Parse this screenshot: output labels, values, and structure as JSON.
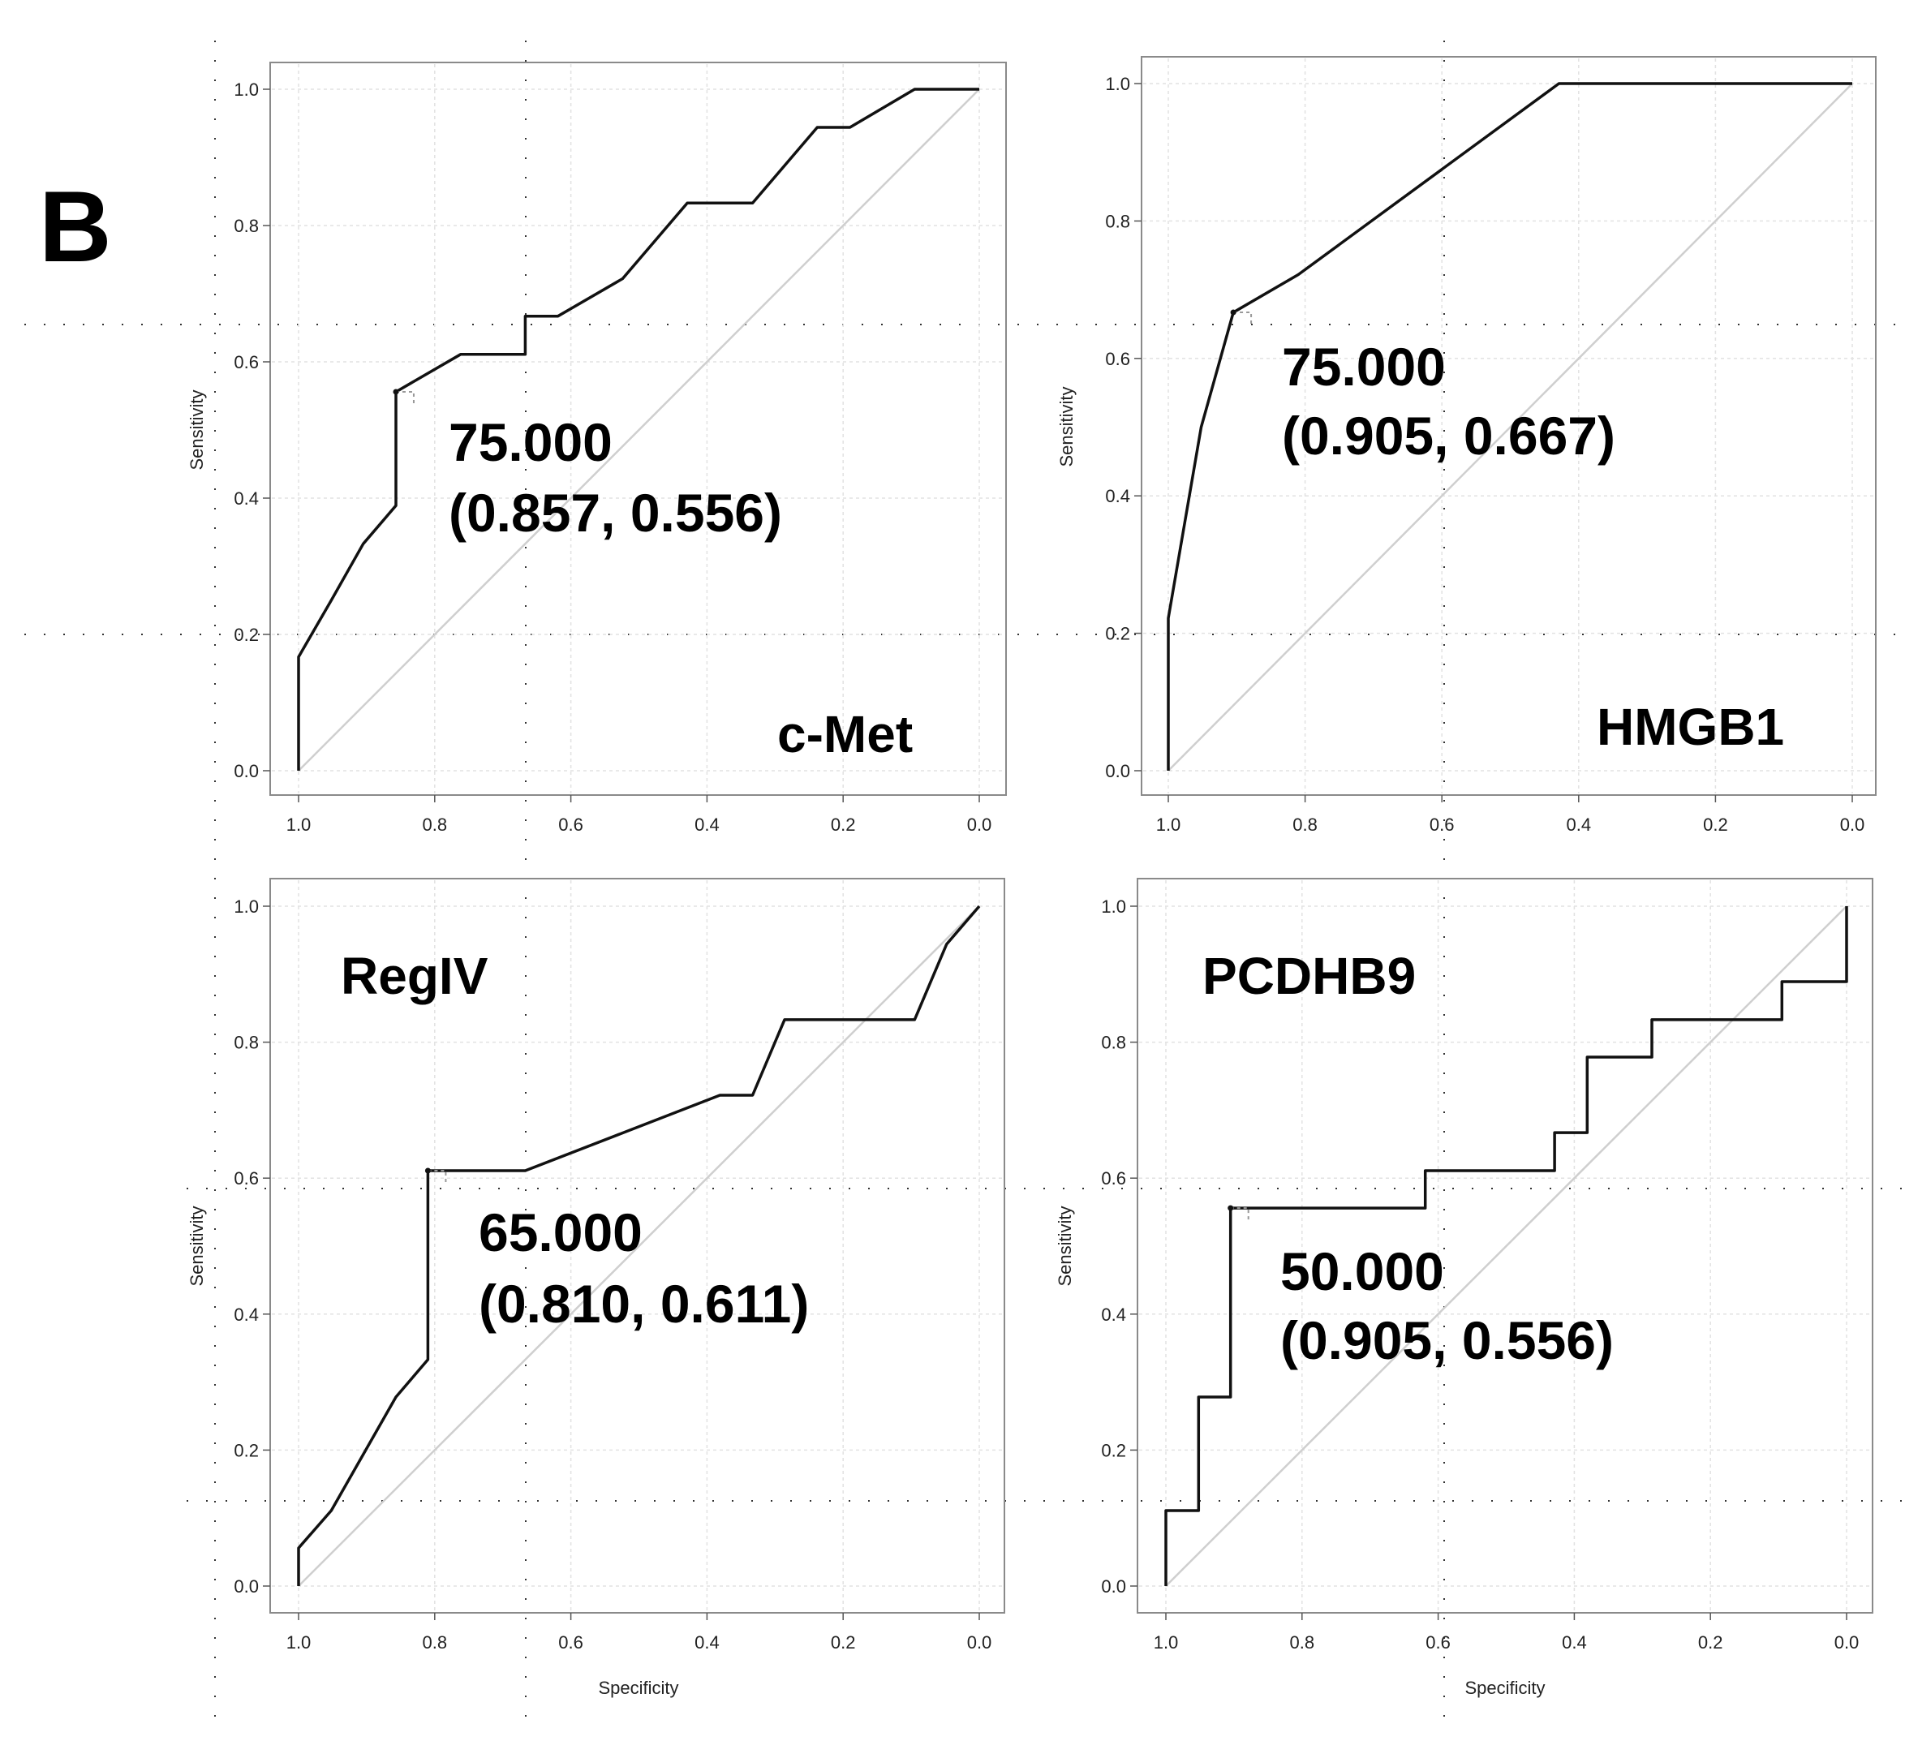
{
  "figure": {
    "panel_label": "B"
  },
  "chart_data": [
    {
      "type": "line",
      "marker": "c-Met",
      "xlabel": "",
      "ylabel": "Sensitivity",
      "xlim": [
        1.0,
        0.0
      ],
      "ylim": [
        0.0,
        1.0
      ],
      "xticks": [
        "1.0",
        "0.8",
        "0.6",
        "0.4",
        "0.2",
        "0.0"
      ],
      "yticks": [
        "0.0",
        "0.2",
        "0.4",
        "0.6",
        "0.8",
        "1.0"
      ],
      "grid": true,
      "reference_diagonal": true,
      "series": [
        {
          "name": "c-Met ROC",
          "points": [
            [
              1.0,
              0.0
            ],
            [
              1.0,
              0.167
            ],
            [
              0.952,
              0.25
            ],
            [
              0.905,
              0.333
            ],
            [
              0.857,
              0.389
            ],
            [
              0.857,
              0.556
            ],
            [
              0.762,
              0.611
            ],
            [
              0.667,
              0.611
            ],
            [
              0.667,
              0.667
            ],
            [
              0.619,
              0.667
            ],
            [
              0.524,
              0.722
            ],
            [
              0.429,
              0.833
            ],
            [
              0.333,
              0.833
            ],
            [
              0.238,
              0.944
            ],
            [
              0.19,
              0.944
            ],
            [
              0.095,
              1.0
            ],
            [
              0.0,
              1.0
            ]
          ]
        }
      ],
      "cutoff": {
        "specificity": 0.857,
        "sensitivity": 0.556
      },
      "annotation": {
        "threshold": "75.000",
        "coords": "(0.857, 0.556)"
      }
    },
    {
      "type": "line",
      "marker": "HMGB1",
      "xlabel": "",
      "ylabel": "Sensitivity",
      "xlim": [
        1.0,
        0.0
      ],
      "ylim": [
        0.0,
        1.0
      ],
      "xticks": [
        "1.0",
        "0.8",
        "0.6",
        "0.4",
        "0.2",
        "0.0"
      ],
      "yticks": [
        "0.0",
        "0.2",
        "0.4",
        "0.6",
        "0.8",
        "1.0"
      ],
      "grid": true,
      "reference_diagonal": true,
      "series": [
        {
          "name": "HMGB1 ROC",
          "points": [
            [
              1.0,
              0.0
            ],
            [
              1.0,
              0.222
            ],
            [
              0.952,
              0.5
            ],
            [
              0.905,
              0.667
            ],
            [
              0.81,
              0.722
            ],
            [
              0.429,
              1.0
            ],
            [
              0.0,
              1.0
            ]
          ]
        }
      ],
      "cutoff": {
        "specificity": 0.905,
        "sensitivity": 0.667
      },
      "annotation": {
        "threshold": "75.000",
        "coords": "(0.905, 0.667)"
      }
    },
    {
      "type": "line",
      "marker": "RegIV",
      "xlabel": "Specificity",
      "ylabel": "Sensitivity",
      "xlim": [
        1.0,
        0.0
      ],
      "ylim": [
        0.0,
        1.0
      ],
      "xticks": [
        "1.0",
        "0.8",
        "0.6",
        "0.4",
        "0.2",
        "0.0"
      ],
      "yticks": [
        "0.0",
        "0.2",
        "0.4",
        "0.6",
        "0.8",
        "1.0"
      ],
      "grid": true,
      "reference_diagonal": true,
      "series": [
        {
          "name": "RegIV ROC",
          "points": [
            [
              1.0,
              0.0
            ],
            [
              1.0,
              0.056
            ],
            [
              0.952,
              0.111
            ],
            [
              0.857,
              0.278
            ],
            [
              0.81,
              0.333
            ],
            [
              0.81,
              0.611
            ],
            [
              0.667,
              0.611
            ],
            [
              0.381,
              0.722
            ],
            [
              0.333,
              0.722
            ],
            [
              0.286,
              0.833
            ],
            [
              0.095,
              0.833
            ],
            [
              0.048,
              0.944
            ],
            [
              0.0,
              1.0
            ]
          ]
        }
      ],
      "cutoff": {
        "specificity": 0.81,
        "sensitivity": 0.611
      },
      "annotation": {
        "threshold": "65.000",
        "coords": "(0.810, 0.611)"
      }
    },
    {
      "type": "line",
      "marker": "PCDHB9",
      "xlabel": "Specificity",
      "ylabel": "Sensitivity",
      "xlim": [
        1.0,
        0.0
      ],
      "ylim": [
        0.0,
        1.0
      ],
      "xticks": [
        "1.0",
        "0.8",
        "0.6",
        "0.4",
        "0.2",
        "0.0"
      ],
      "yticks": [
        "0.0",
        "0.2",
        "0.4",
        "0.6",
        "0.8",
        "1.0"
      ],
      "grid": true,
      "reference_diagonal": true,
      "series": [
        {
          "name": "PCDHB9 ROC",
          "points": [
            [
              1.0,
              0.0
            ],
            [
              1.0,
              0.111
            ],
            [
              0.952,
              0.111
            ],
            [
              0.952,
              0.278
            ],
            [
              0.905,
              0.278
            ],
            [
              0.905,
              0.556
            ],
            [
              0.619,
              0.556
            ],
            [
              0.619,
              0.611
            ],
            [
              0.429,
              0.611
            ],
            [
              0.429,
              0.667
            ],
            [
              0.381,
              0.667
            ],
            [
              0.381,
              0.778
            ],
            [
              0.286,
              0.778
            ],
            [
              0.286,
              0.833
            ],
            [
              0.095,
              0.833
            ],
            [
              0.095,
              0.889
            ],
            [
              0.0,
              0.889
            ],
            [
              0.0,
              1.0
            ]
          ]
        }
      ],
      "cutoff": {
        "specificity": 0.905,
        "sensitivity": 0.556
      },
      "annotation": {
        "threshold": "50.000",
        "coords": "(0.905, 0.556)"
      }
    }
  ]
}
